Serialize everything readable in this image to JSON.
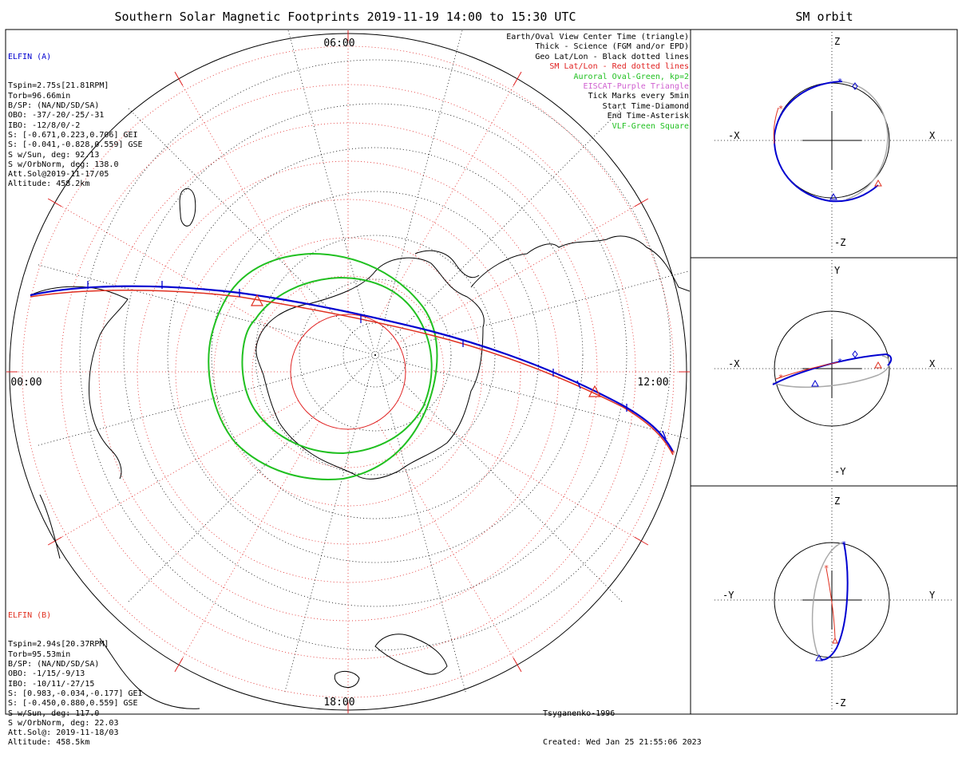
{
  "title": "Southern Solar Magnetic Footprints 2019-11-19 14:00 to 15:30 UTC",
  "sm_title": "SM orbit",
  "map": {
    "mlt_labels": {
      "top": "06:00",
      "left": "00:00",
      "right": "12:00",
      "bottom": "18:00"
    }
  },
  "legend": [
    {
      "text": "Earth/Oval View Center Time (triangle)",
      "color": "#000000"
    },
    {
      "text": "Thick - Science (FGM and/or EPD)",
      "color": "#000000"
    },
    {
      "text": "Geo Lat/Lon - Black dotted lines",
      "color": "#000000"
    },
    {
      "text": "SM Lat/Lon - Red dotted lines",
      "color": "#e02020"
    },
    {
      "text": "Auroral Oval-Green, kp=2",
      "color": "#20c020"
    },
    {
      "text": "EISCAT-Purple Triangle",
      "color": "#d060d0"
    },
    {
      "text": "Tick Marks every 5min",
      "color": "#000000"
    },
    {
      "text": "Start Time-Diamond",
      "color": "#000000"
    },
    {
      "text": "End Time-Asterisk",
      "color": "#000000"
    },
    {
      "text": "VLF-Green Square",
      "color": "#20c020"
    }
  ],
  "elfin_a": {
    "name": "ELFIN (A)",
    "lines": [
      "Tspin=2.75s[21.81RPM]",
      "Torb=96.66min",
      "B/SP: (NA/ND/SD/SA)",
      "OBO: -37/-20/-25/-31",
      "IBO: -12/8/0/-2",
      "S: [-0.671,0.223,0.706] GEI",
      "S: [-0.041,-0.828,0.559] GSE",
      "S w/Sun, deg: 92.13",
      "S w/OrbNorm, deg: 138.0",
      "Att.Sol@2019-11-17/05",
      "Altitude: 458.2km"
    ]
  },
  "elfin_b": {
    "name": "ELFIN (B)",
    "lines": [
      "Tspin=2.94s[20.37RPM]",
      "Torb=95.53min",
      "B/SP: (NA/ND/SD/SA)",
      "OBO: -1/15/-9/13",
      "IBO: -10/11/-27/15",
      "S: [0.983,-0.034,-0.177] GEI",
      "S: [-0.450,0.880,0.559] GSE",
      "S w/Sun, deg: 117.0",
      "S w/OrbNorm, deg: 22.03",
      "Att.Sol@: 2019-11-18/03",
      "Altitude: 458.5km"
    ]
  },
  "credit": {
    "model": "Tsyganenko-1996",
    "created": "Created: Wed Jan 25 21:55:06 2023"
  },
  "sm_panels": [
    {
      "h_neg": "-X",
      "h_pos": "X",
      "v_pos": "Z",
      "v_neg": "-Z"
    },
    {
      "h_neg": "-X",
      "h_pos": "X",
      "v_pos": "Y",
      "v_neg": "-Y"
    },
    {
      "h_neg": "-Y",
      "h_pos": "Y",
      "v_pos": "Z",
      "v_neg": "-Z"
    }
  ],
  "colors": {
    "elfin_a": "#0000d0",
    "elfin_b": "#e03020",
    "oval": "#20c020",
    "sm_grid": "#e02020",
    "geo_grid": "#000000",
    "prior_orbit": "#aaaaaa"
  }
}
